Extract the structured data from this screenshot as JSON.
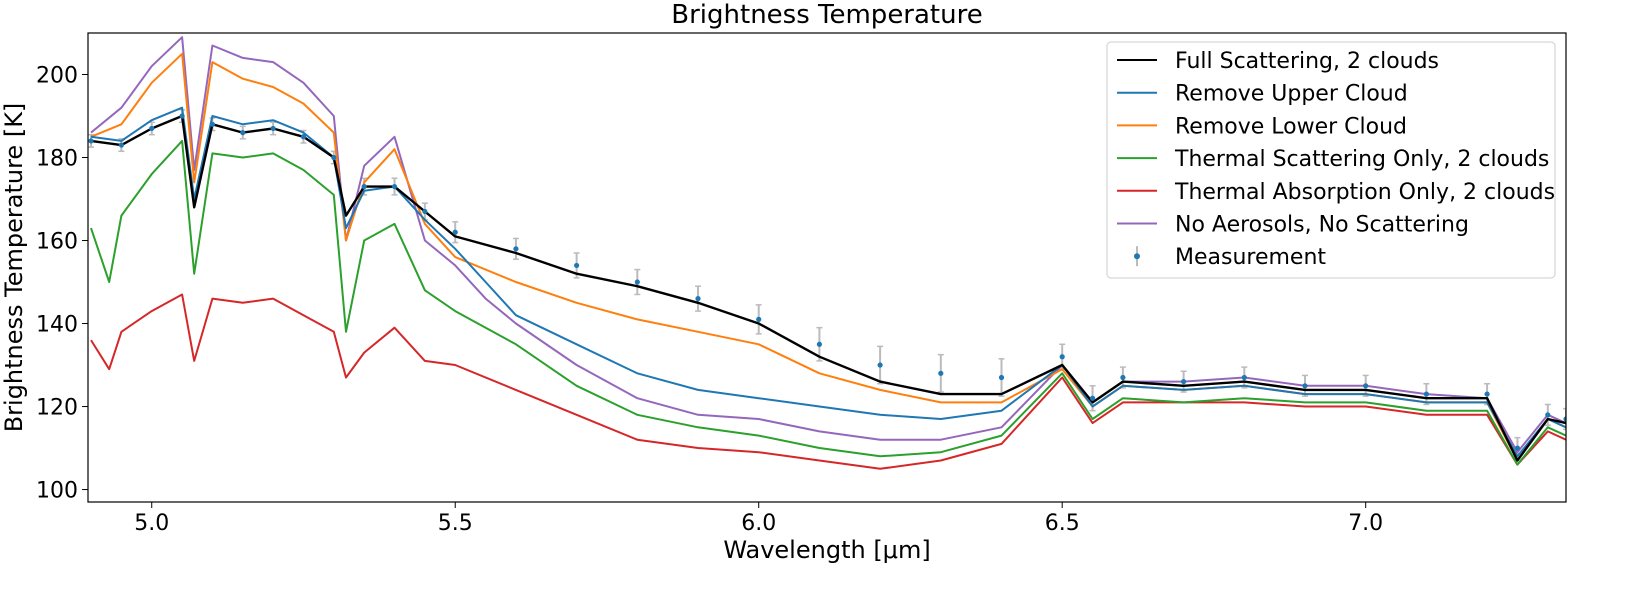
{
  "chart_data": {
    "type": "line",
    "title": "Brightness Temperature",
    "xlabel": "Wavelength [μm]",
    "ylabel": "Brightness Temperature [K]",
    "xlim": [
      4.895,
      7.33
    ],
    "ylim": [
      97,
      210
    ],
    "xticks": [
      5.0,
      5.5,
      6.0,
      6.5,
      7.0
    ],
    "xtick_labels": [
      "5.0",
      "5.5",
      "6.0",
      "6.5",
      "7.0"
    ],
    "yticks": [
      100,
      120,
      140,
      160,
      180,
      200
    ],
    "ytick_labels": [
      "100",
      "120",
      "140",
      "160",
      "180",
      "200"
    ],
    "grid": false,
    "legend_position": "top-right",
    "series": [
      {
        "name": "Full Scattering, 2 clouds",
        "color": "#000000",
        "x": [
          4.9,
          4.95,
          5.0,
          5.05,
          5.07,
          5.1,
          5.15,
          5.2,
          5.25,
          5.3,
          5.32,
          5.35,
          5.4,
          5.45,
          5.5,
          5.6,
          5.7,
          5.8,
          5.9,
          6.0,
          6.1,
          6.2,
          6.3,
          6.4,
          6.5,
          6.55,
          6.6,
          6.7,
          6.8,
          6.9,
          7.0,
          7.1,
          7.2,
          7.25,
          7.3,
          7.33
        ],
        "y": [
          184,
          183,
          187,
          190,
          168,
          188,
          186,
          187,
          185,
          180,
          166,
          173,
          173,
          167,
          161,
          157,
          152,
          149,
          145,
          140,
          132,
          126,
          123,
          123,
          130,
          121,
          126,
          125,
          126,
          124,
          124,
          122,
          122,
          107,
          117,
          116
        ]
      },
      {
        "name": "Remove Upper Cloud",
        "color": "#1f77b4",
        "x": [
          4.9,
          4.95,
          5.0,
          5.05,
          5.07,
          5.1,
          5.15,
          5.2,
          5.25,
          5.3,
          5.32,
          5.35,
          5.4,
          5.45,
          5.5,
          5.55,
          5.6,
          5.7,
          5.8,
          5.9,
          6.0,
          6.1,
          6.2,
          6.3,
          6.4,
          6.5,
          6.55,
          6.6,
          6.7,
          6.8,
          6.9,
          7.0,
          7.1,
          7.2,
          7.25,
          7.3,
          7.33
        ],
        "y": [
          185,
          184,
          189,
          192,
          170,
          190,
          188,
          189,
          186,
          180,
          163,
          172,
          173,
          165,
          158,
          150,
          142,
          135,
          128,
          124,
          122,
          120,
          118,
          117,
          119,
          130,
          120,
          125,
          124,
          125,
          123,
          123,
          121,
          121,
          108,
          117,
          115
        ]
      },
      {
        "name": "Remove Lower Cloud",
        "color": "#ff7f0e",
        "x": [
          4.9,
          4.95,
          5.0,
          5.05,
          5.07,
          5.1,
          5.15,
          5.2,
          5.25,
          5.3,
          5.32,
          5.35,
          5.4,
          5.45,
          5.5,
          5.6,
          5.7,
          5.8,
          5.9,
          6.0,
          6.1,
          6.2,
          6.3,
          6.4,
          6.5,
          6.55,
          6.6,
          6.7,
          6.8,
          6.9,
          7.0,
          7.1,
          7.2,
          7.25,
          7.3,
          7.33
        ],
        "y": [
          185,
          188,
          198,
          205,
          174,
          203,
          199,
          197,
          193,
          186,
          160,
          174,
          182,
          164,
          156,
          150,
          145,
          141,
          138,
          135,
          128,
          124,
          121,
          121,
          129,
          120,
          125,
          124,
          125,
          123,
          123,
          121,
          121,
          107,
          117,
          115
        ]
      },
      {
        "name": "Thermal Scattering Only, 2 clouds",
        "color": "#2ca02c",
        "x": [
          4.9,
          4.93,
          4.95,
          5.0,
          5.05,
          5.07,
          5.1,
          5.15,
          5.2,
          5.25,
          5.3,
          5.32,
          5.35,
          5.4,
          5.45,
          5.5,
          5.6,
          5.7,
          5.8,
          5.9,
          6.0,
          6.1,
          6.2,
          6.3,
          6.4,
          6.5,
          6.55,
          6.6,
          6.7,
          6.8,
          6.9,
          7.0,
          7.1,
          7.2,
          7.25,
          7.3,
          7.33
        ],
        "y": [
          163,
          150,
          166,
          176,
          184,
          152,
          181,
          180,
          181,
          177,
          171,
          138,
          160,
          164,
          148,
          143,
          135,
          125,
          118,
          115,
          113,
          110,
          108,
          109,
          113,
          128,
          117,
          122,
          121,
          122,
          121,
          121,
          119,
          119,
          106,
          115,
          113
        ]
      },
      {
        "name": "Thermal Absorption Only, 2 clouds",
        "color": "#d62728",
        "x": [
          4.9,
          4.93,
          4.95,
          5.0,
          5.05,
          5.07,
          5.1,
          5.15,
          5.2,
          5.25,
          5.3,
          5.32,
          5.35,
          5.4,
          5.45,
          5.5,
          5.6,
          5.7,
          5.8,
          5.9,
          6.0,
          6.1,
          6.2,
          6.3,
          6.4,
          6.5,
          6.55,
          6.6,
          6.7,
          6.8,
          6.9,
          7.0,
          7.1,
          7.2,
          7.25,
          7.3,
          7.33
        ],
        "y": [
          136,
          129,
          138,
          143,
          147,
          131,
          146,
          145,
          146,
          142,
          138,
          127,
          133,
          139,
          131,
          130,
          124,
          118,
          112,
          110,
          109,
          107,
          105,
          107,
          111,
          127,
          116,
          121,
          121,
          121,
          120,
          120,
          118,
          118,
          106,
          114,
          112
        ]
      },
      {
        "name": "No Aerosols, No Scattering",
        "color": "#9467bd",
        "x": [
          4.9,
          4.95,
          5.0,
          5.05,
          5.07,
          5.1,
          5.15,
          5.2,
          5.25,
          5.3,
          5.32,
          5.35,
          5.4,
          5.45,
          5.5,
          5.55,
          5.6,
          5.7,
          5.8,
          5.9,
          6.0,
          6.1,
          6.2,
          6.3,
          6.4,
          6.5,
          6.55,
          6.6,
          6.7,
          6.8,
          6.9,
          7.0,
          7.1,
          7.2,
          7.25,
          7.3,
          7.33
        ],
        "y": [
          186,
          192,
          202,
          209,
          177,
          207,
          204,
          203,
          198,
          190,
          160,
          178,
          185,
          160,
          154,
          146,
          140,
          130,
          122,
          118,
          117,
          114,
          112,
          112,
          115,
          130,
          121,
          126,
          126,
          127,
          125,
          125,
          123,
          122,
          109,
          118,
          116
        ]
      },
      {
        "name": "Measurement",
        "type": "errorbar",
        "color": "#1f77b4",
        "error_color": "#bbbbbb",
        "x": [
          4.9,
          4.95,
          5.0,
          5.05,
          5.1,
          5.15,
          5.2,
          5.25,
          5.3,
          5.35,
          5.4,
          5.45,
          5.5,
          5.6,
          5.7,
          5.8,
          5.9,
          6.0,
          6.1,
          6.2,
          6.3,
          6.4,
          6.5,
          6.55,
          6.6,
          6.7,
          6.8,
          6.9,
          7.0,
          7.1,
          7.2,
          7.25,
          7.3,
          7.33
        ],
        "y": [
          184,
          183,
          187,
          190,
          188,
          186,
          187,
          185,
          180,
          173,
          173,
          167,
          162,
          158,
          154,
          150,
          146,
          141,
          135,
          130,
          128,
          127,
          132,
          122,
          127,
          126,
          127,
          125,
          125,
          123,
          123,
          110,
          118,
          117
        ],
        "yerr": [
          1.5,
          1.5,
          1.5,
          1.5,
          1.5,
          1.5,
          1.5,
          1.5,
          1.5,
          2,
          2,
          2,
          2.5,
          2.5,
          3,
          3,
          3,
          3.5,
          4,
          4.5,
          4.5,
          4.5,
          3,
          3,
          2.5,
          2.5,
          2.5,
          2.5,
          2.5,
          2.5,
          2.5,
          2.5,
          2.5,
          2.5
        ]
      }
    ]
  }
}
